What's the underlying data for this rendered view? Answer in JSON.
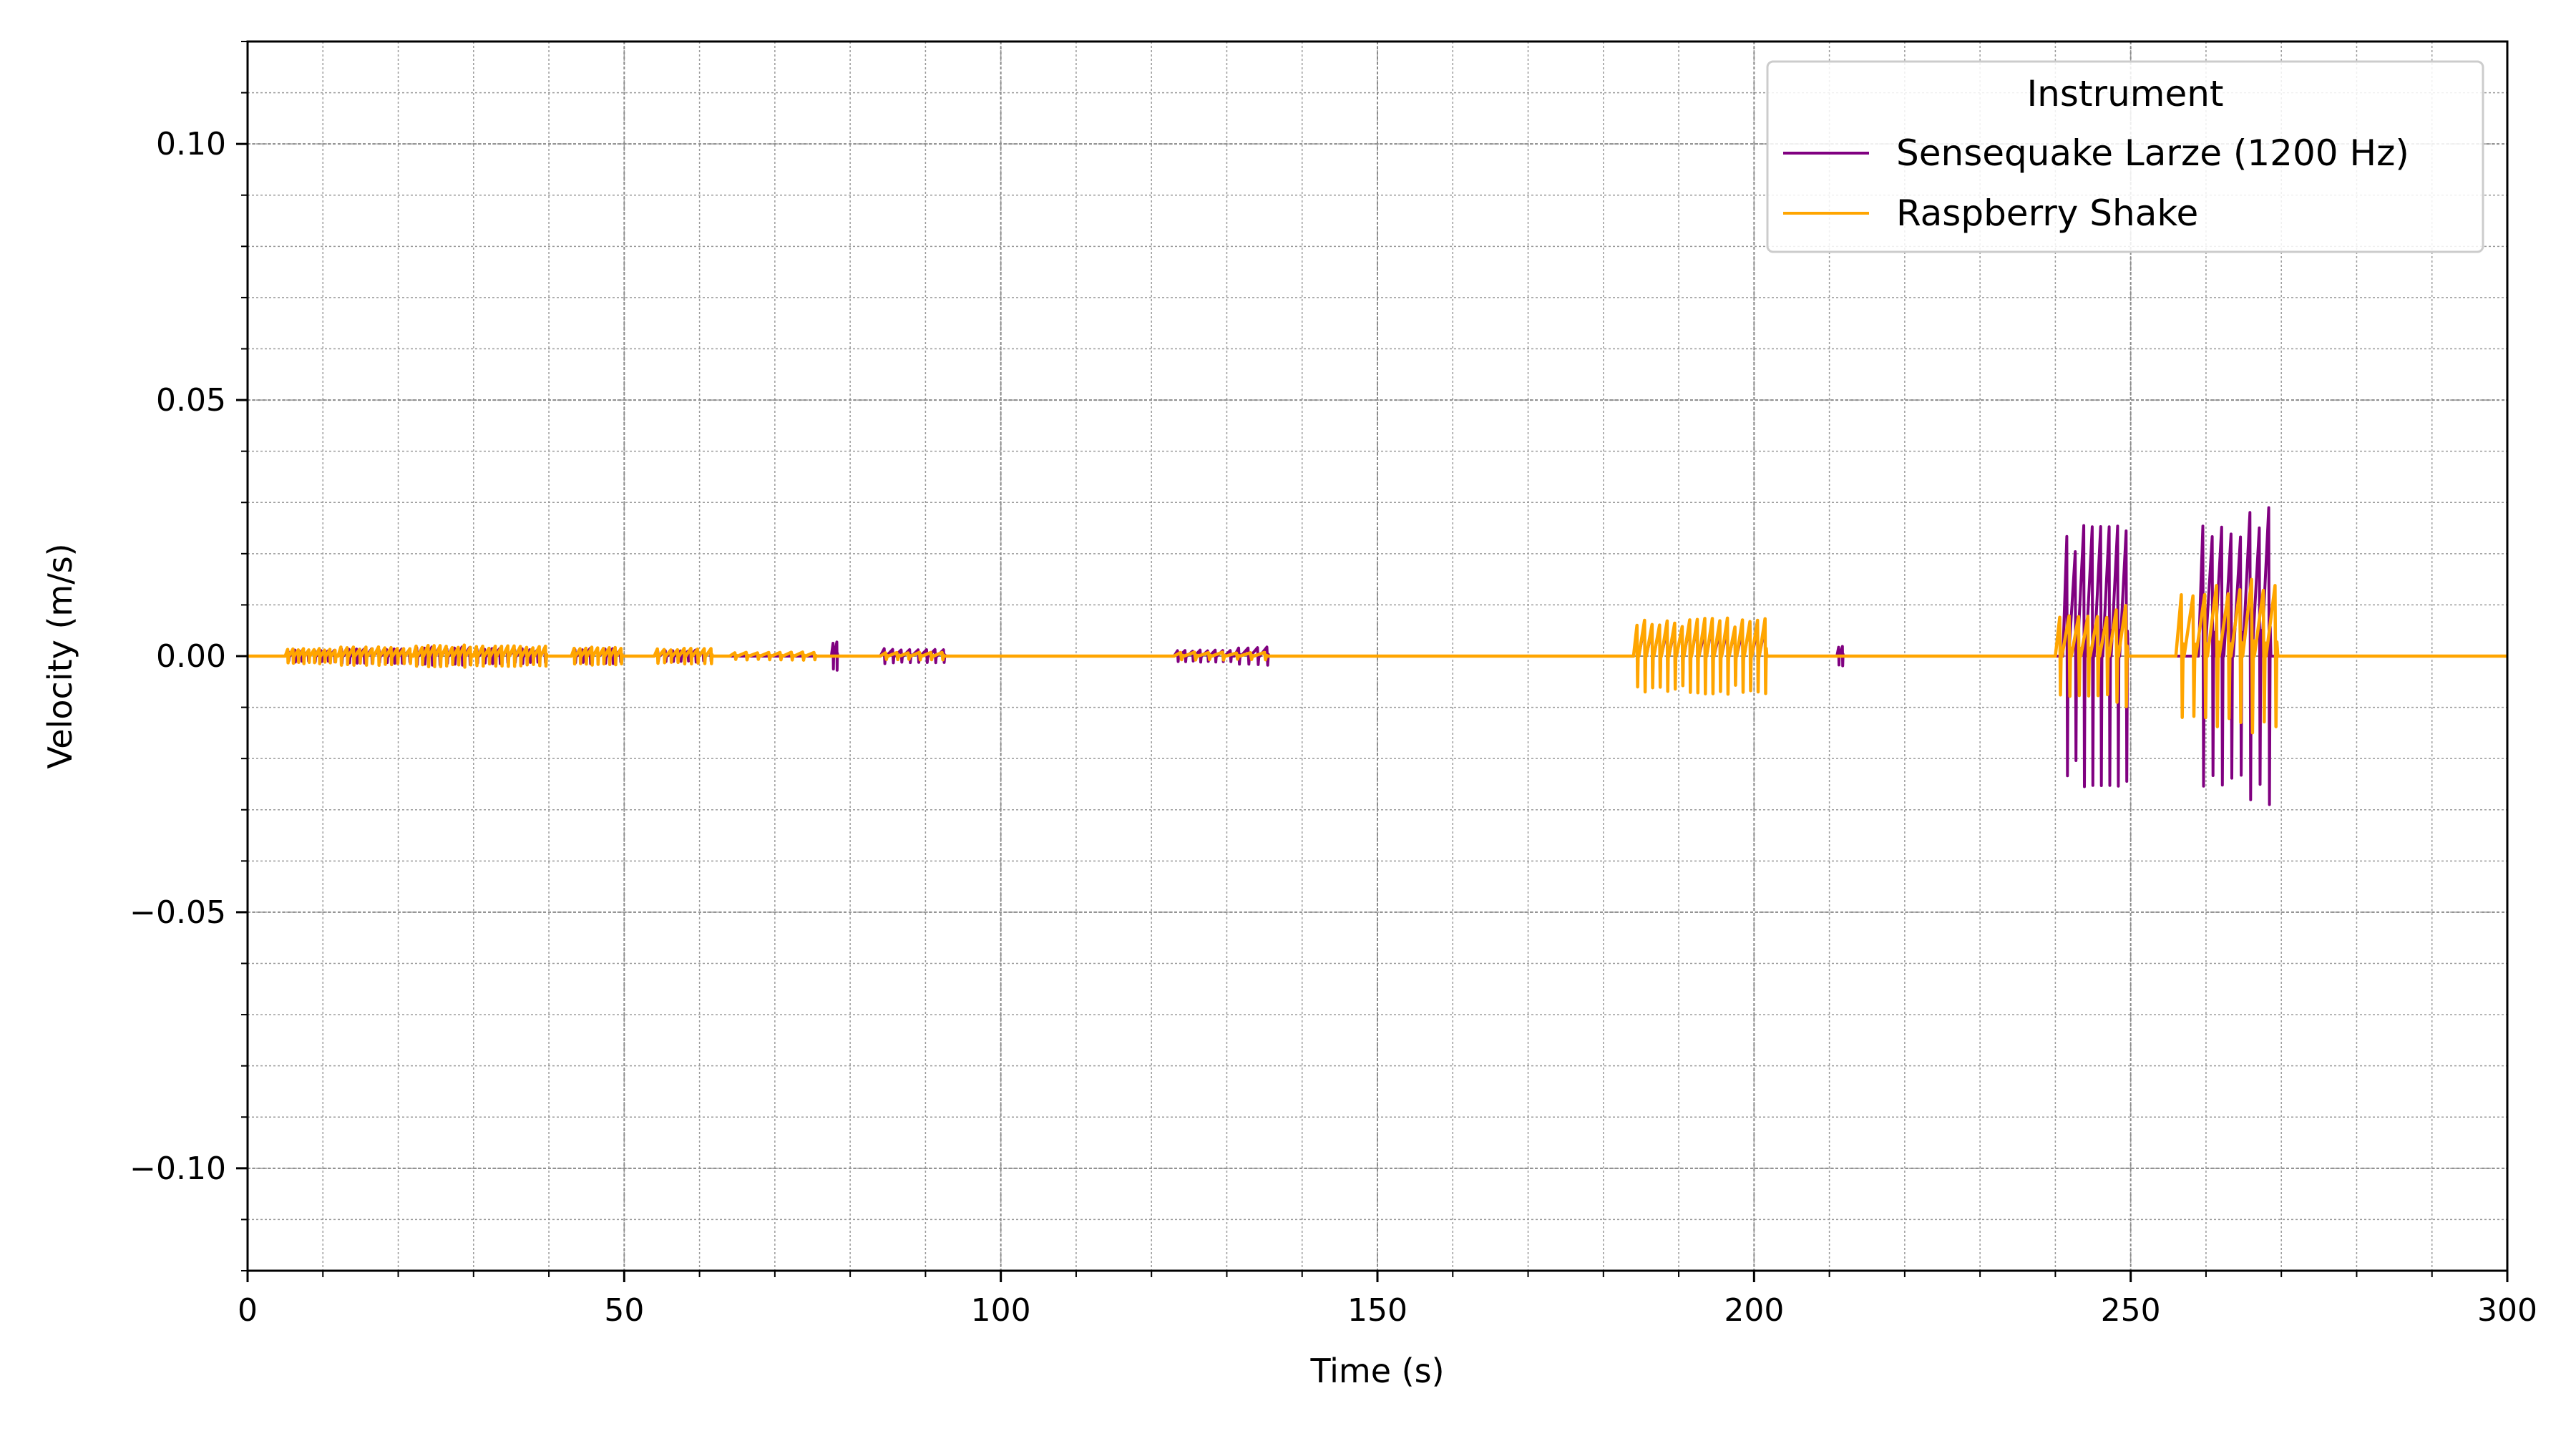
{
  "chart_data": {
    "type": "line",
    "title": "",
    "xlabel": "Time (s)",
    "ylabel": "Velocity (m/s)",
    "xlim": [
      0,
      300
    ],
    "ylim": [
      -0.12,
      0.12
    ],
    "x_ticks": [
      0,
      50,
      100,
      150,
      200,
      250,
      300
    ],
    "x_tick_labels": [
      "0",
      "50",
      "100",
      "150",
      "200",
      "250",
      "300"
    ],
    "x_minor_step": 10,
    "y_ticks": [
      -0.1,
      -0.05,
      0.0,
      0.05,
      0.1
    ],
    "y_tick_labels": [
      "−0.10",
      "−0.05",
      "0.00",
      "0.05",
      "0.10"
    ],
    "y_minor_step": 0.01,
    "grid": true,
    "legend": {
      "title": "Instrument",
      "placement": "top-right"
    },
    "series": [
      {
        "name": "Sensequake Larze (1200 Hz)",
        "color": "#800080",
        "bursts": [
          {
            "t": [
              5,
              12
            ],
            "amp": 0.0012,
            "spikes": 8
          },
          {
            "t": [
              12,
              22
            ],
            "amp": 0.0015,
            "spikes": 10
          },
          {
            "t": [
              22,
              30
            ],
            "amp": 0.0018,
            "spikes": 8
          },
          {
            "t": [
              30,
              40
            ],
            "amp": 0.0015,
            "spikes": 10
          },
          {
            "t": [
              43,
              50
            ],
            "amp": 0.0015,
            "spikes": 7
          },
          {
            "t": [
              54,
              62
            ],
            "amp": 0.0012,
            "spikes": 8
          },
          {
            "t": [
              77.5,
              78.5
            ],
            "amp": 0.003,
            "spikes": 2
          },
          {
            "t": [
              84,
              93
            ],
            "amp": 0.0015,
            "spikes": 8
          },
          {
            "t": [
              123,
              131
            ],
            "amp": 0.0012,
            "spikes": 8
          },
          {
            "t": [
              131,
              136
            ],
            "amp": 0.0018,
            "spikes": 4
          },
          {
            "t": [
              184,
              202
            ],
            "amp": 0.0065,
            "spikes": 18
          },
          {
            "t": [
              211,
              212
            ],
            "amp": 0.0022,
            "spikes": 2
          },
          {
            "t": [
              241,
              250
            ],
            "amp": 0.026,
            "spikes": 8
          },
          {
            "t": [
              259,
              269
            ],
            "amp": 0.031,
            "spikes": 8
          }
        ]
      },
      {
        "name": "Raspberry Shake",
        "color": "#FFA500",
        "bursts": [
          {
            "t": [
              5,
              12
            ],
            "amp": 0.0015,
            "spikes": 10
          },
          {
            "t": [
              12,
              22
            ],
            "amp": 0.0018,
            "spikes": 12
          },
          {
            "t": [
              22,
              30
            ],
            "amp": 0.0022,
            "spikes": 10
          },
          {
            "t": [
              30,
              40
            ],
            "amp": 0.002,
            "spikes": 12
          },
          {
            "t": [
              43,
              50
            ],
            "amp": 0.0018,
            "spikes": 9
          },
          {
            "t": [
              54,
              62
            ],
            "amp": 0.0015,
            "spikes": 9
          },
          {
            "t": [
              64,
              76
            ],
            "amp": 0.0008,
            "spikes": 8
          },
          {
            "t": [
              84,
              93
            ],
            "amp": 0.0008,
            "spikes": 6
          },
          {
            "t": [
              123,
              136
            ],
            "amp": 0.0008,
            "spikes": 7
          },
          {
            "t": [
              184,
              202
            ],
            "amp": 0.0075,
            "spikes": 18
          },
          {
            "t": [
              240,
              250
            ],
            "amp": 0.01,
            "spikes": 8
          },
          {
            "t": [
              256,
              270
            ],
            "amp": 0.015,
            "spikes": 9
          }
        ]
      }
    ]
  }
}
